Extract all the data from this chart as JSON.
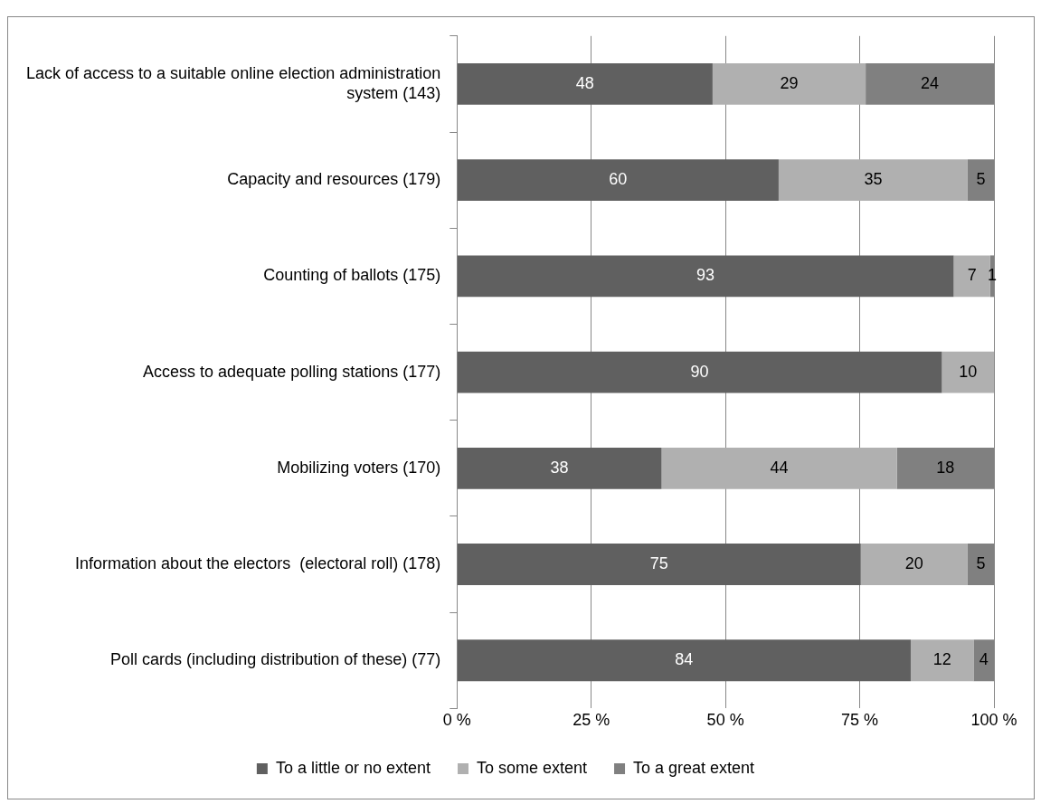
{
  "chart_data": {
    "type": "bar",
    "orientation": "horizontal",
    "stacked": true,
    "categories": [
      "Lack of access to a suitable online election administration system (143)",
      "Capacity and resources (179)",
      "Counting of ballots (175)",
      "Access to adequate polling stations (177)",
      "Mobilizing voters (170)",
      "Information about the electors  (electoral roll) (178)",
      "Poll cards (including distribution of these) (77)"
    ],
    "series": [
      {
        "name": "To a little or no extent",
        "color": "#606060",
        "values": [
          47.6,
          59.9,
          92.5,
          90.3,
          38.1,
          75.2,
          84.5
        ],
        "value_labels": [
          "48",
          "60",
          "93",
          "90",
          "38",
          "75",
          "84"
        ]
      },
      {
        "name": "To some extent",
        "color": "#b0b0b0",
        "values": [
          28.5,
          35.2,
          6.8,
          9.7,
          43.8,
          19.9,
          11.7
        ],
        "value_labels": [
          "29",
          "35",
          "7",
          "10",
          "44",
          "20",
          "12"
        ]
      },
      {
        "name": "To a great extent",
        "color": "#808080",
        "values": [
          23.9,
          4.9,
          0.7,
          null,
          18.1,
          4.9,
          3.8
        ],
        "value_labels": [
          "24",
          "5",
          "1",
          null,
          "18",
          "5",
          "4"
        ]
      }
    ],
    "xlim": [
      0,
      100
    ],
    "xticks": [
      {
        "value": 0,
        "label": "0 %"
      },
      {
        "value": 25,
        "label": "25 %"
      },
      {
        "value": 50,
        "label": "50 %"
      },
      {
        "value": 75,
        "label": "75 %"
      },
      {
        "value": 100,
        "label": "100 %"
      }
    ],
    "grid": "x",
    "legend": "bottom"
  }
}
